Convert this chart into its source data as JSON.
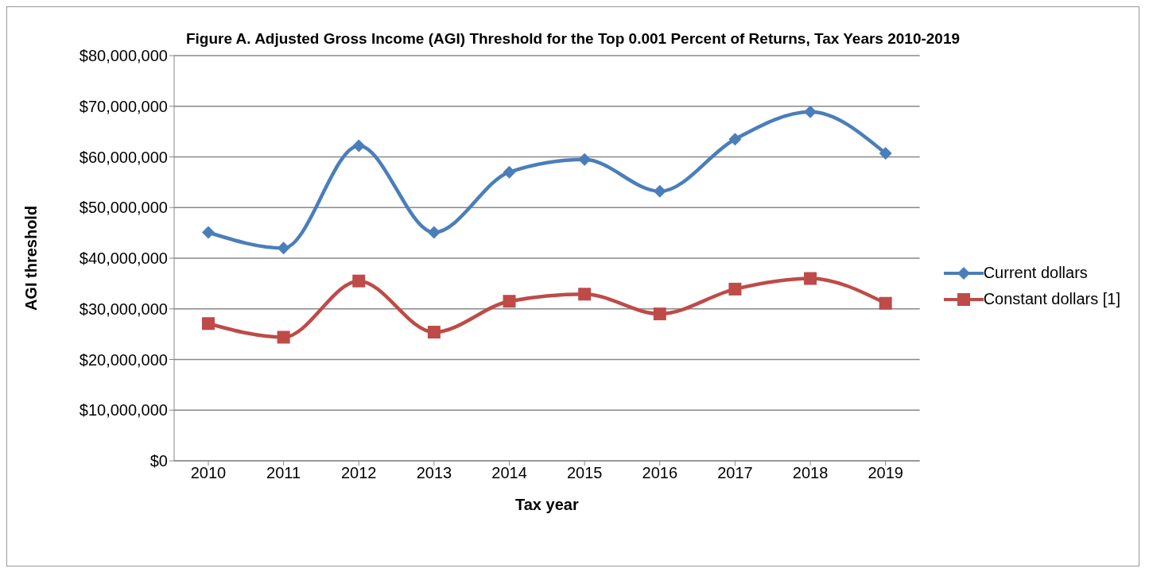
{
  "chart_data": {
    "type": "line",
    "title": "Figure A.  Adjusted Gross Income (AGI) Threshold for the Top 0.001 Percent of Returns, Tax Years 2010-2019",
    "xlabel": "Tax year",
    "ylabel": "AGI threshold",
    "categories": [
      "2010",
      "2011",
      "2012",
      "2013",
      "2014",
      "2015",
      "2016",
      "2017",
      "2018",
      "2019"
    ],
    "series": [
      {
        "name": "Current dollars",
        "color": "#4a7ebb",
        "marker": "diamond",
        "values": [
          45100000,
          42000000,
          62200000,
          45100000,
          57000000,
          59500000,
          53200000,
          63500000,
          68900000,
          60700000
        ]
      },
      {
        "name": "Constant dollars [1]",
        "color": "#be4b48",
        "marker": "square",
        "values": [
          27100000,
          24400000,
          35500000,
          25400000,
          31500000,
          32900000,
          29000000,
          33900000,
          36000000,
          31100000
        ]
      }
    ],
    "ylim": [
      0,
      80000000
    ],
    "yticks": [
      {
        "value": 0,
        "label": "$0"
      },
      {
        "value": 10000000,
        "label": "$10,000,000"
      },
      {
        "value": 20000000,
        "label": "$20,000,000"
      },
      {
        "value": 30000000,
        "label": "$30,000,000"
      },
      {
        "value": 40000000,
        "label": "$40,000,000"
      },
      {
        "value": 50000000,
        "label": "$50,000,000"
      },
      {
        "value": 60000000,
        "label": "$60,000,000"
      },
      {
        "value": 70000000,
        "label": "$70,000,000"
      },
      {
        "value": 80000000,
        "label": "$80,000,000"
      }
    ],
    "grid": "y",
    "legend": "right",
    "line_style": "solid"
  }
}
